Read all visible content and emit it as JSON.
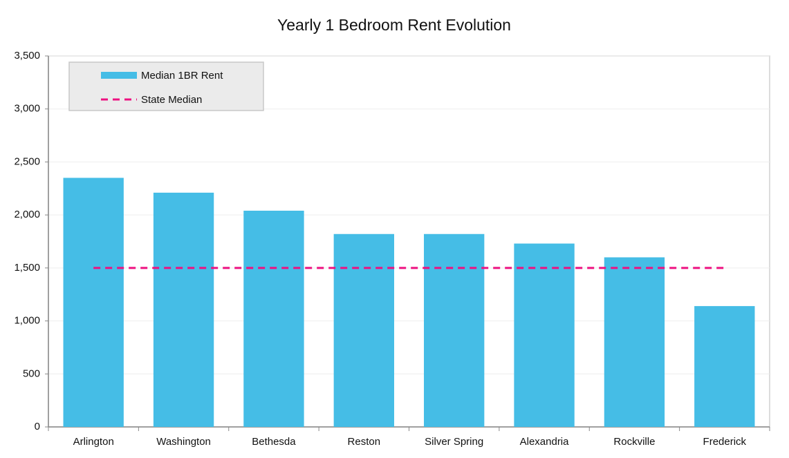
{
  "chart_data": {
    "type": "bar",
    "title": "Yearly 1 Bedroom Rent Evolution",
    "categories": [
      "Arlington",
      "Washington",
      "Bethesda",
      "Reston",
      "Silver Spring",
      "Alexandria",
      "Rockville",
      "Frederick"
    ],
    "series": [
      {
        "name": "Median 1BR Rent",
        "type": "bar",
        "color": "#45bde6",
        "values": [
          2350,
          2210,
          2040,
          1820,
          1820,
          1730,
          1600,
          1140
        ]
      },
      {
        "name": "State Median",
        "type": "line",
        "dashed": true,
        "color": "#ee1180",
        "values": [
          1500,
          1500,
          1500,
          1500,
          1500,
          1500,
          1500,
          1500
        ]
      }
    ],
    "ylim": [
      0,
      3500
    ],
    "yticks": [
      0,
      500,
      {
        "value": 1000,
        "label": "1,000"
      },
      {
        "value": 1500,
        "label": "1,500"
      },
      {
        "value": 2000,
        "label": "2,000"
      },
      {
        "value": 2500,
        "label": "2,500"
      },
      {
        "value": 3000,
        "label": "3,000"
      },
      {
        "value": 3500,
        "label": "3,500"
      }
    ],
    "grid": true,
    "legend": "upper left"
  }
}
